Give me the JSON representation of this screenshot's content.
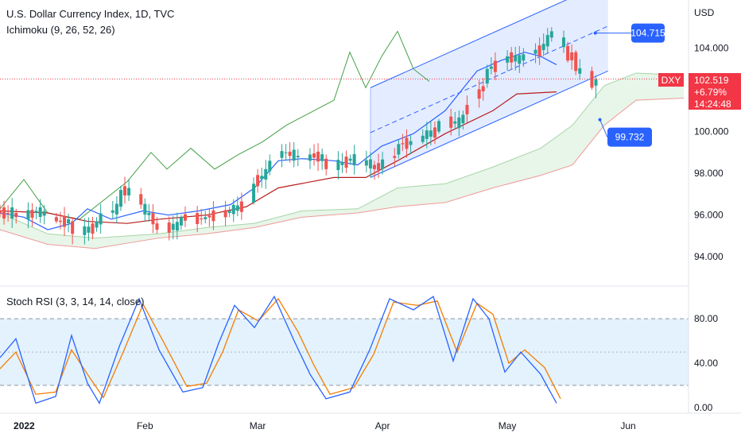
{
  "header": {
    "title": "U.S. Dollar Currency Index, 1D, TVC",
    "indicator": "Ichimoku (9, 26, 52, 26)",
    "stoch_label": "Stoch RSI (3, 3, 14, 14, close)",
    "currency": "USD"
  },
  "price_badge": {
    "symbol": "DXY",
    "price": "102.519",
    "change": "+6.79%",
    "countdown": "14:24:48"
  },
  "callouts": {
    "upper": "104.715",
    "lower": "99.732"
  },
  "colors": {
    "up": "#26a69a",
    "down": "#ef5350",
    "tenkan": "#2962ff",
    "kijun": "#b71c1c",
    "chikou": "#43a047",
    "span_a": "#a5d6a7",
    "span_b": "#ef9a9a",
    "cloud": "#e8f5e9",
    "channel": "#2962ff",
    "channel_fill": "#dbe5ff",
    "stoch_k": "#2962ff",
    "stoch_d": "#f57c00",
    "stoch_band": "#e3f2fd",
    "badge_blue": "#2962ff",
    "badge_red": "#f23645"
  },
  "chart_data": [
    {
      "type": "candlestick",
      "title": "U.S. Dollar Currency Index, 1D, TVC",
      "ylabel": "USD",
      "ylim": [
        92.6,
        106.3
      ],
      "y_ticks": [
        "94.000",
        "96.000",
        "98.000",
        "100.000",
        "104.000"
      ],
      "x_ticks": [
        "2022",
        "Feb",
        "Mar",
        "Apr",
        "May",
        "Jun"
      ],
      "x_range": [
        "2021-12-27",
        "2022-06-16"
      ],
      "candles_ohlc_approx": [
        [
          "2021-12-27",
          96.2,
          96.5,
          95.9,
          96.1
        ],
        [
          "2021-12-31",
          96.1,
          96.3,
          95.6,
          95.9
        ],
        [
          "2022-01-05",
          96.1,
          96.4,
          95.8,
          96.2
        ],
        [
          "2022-01-10",
          95.9,
          96.1,
          95.6,
          95.7
        ],
        [
          "2022-01-14",
          95.7,
          95.9,
          94.6,
          95.1
        ],
        [
          "2022-01-20",
          95.4,
          95.9,
          95.2,
          95.7
        ],
        [
          "2022-01-26",
          96.4,
          97.4,
          96.2,
          97.2
        ],
        [
          "2022-01-31",
          97.0,
          97.3,
          96.3,
          96.5
        ],
        [
          "2022-02-04",
          95.6,
          95.9,
          95.1,
          95.3
        ],
        [
          "2022-02-10",
          95.5,
          96.0,
          95.3,
          95.9
        ],
        [
          "2022-02-16",
          95.8,
          96.2,
          95.6,
          95.9
        ],
        [
          "2022-02-22",
          96.1,
          96.4,
          95.9,
          96.2
        ],
        [
          "2022-02-28",
          96.6,
          97.8,
          96.5,
          97.5
        ],
        [
          "2022-03-04",
          98.1,
          98.9,
          97.9,
          98.6
        ],
        [
          "2022-03-08",
          99.0,
          99.4,
          98.6,
          99.0
        ],
        [
          "2022-03-14",
          98.6,
          99.2,
          98.2,
          98.9
        ],
        [
          "2022-03-18",
          98.7,
          98.9,
          97.9,
          98.2
        ],
        [
          "2022-03-24",
          98.6,
          98.9,
          98.4,
          98.7
        ],
        [
          "2022-03-30",
          98.4,
          98.6,
          97.7,
          98.2
        ],
        [
          "2022-04-05",
          98.9,
          99.6,
          98.7,
          99.4
        ],
        [
          "2022-04-11",
          99.5,
          100.1,
          99.4,
          99.8
        ],
        [
          "2022-04-15",
          100.0,
          100.6,
          99.9,
          100.5
        ],
        [
          "2022-04-21",
          100.4,
          101.0,
          100.1,
          100.8
        ],
        [
          "2022-04-27",
          102.3,
          103.2,
          102.1,
          103.0
        ],
        [
          "2022-05-02",
          103.3,
          103.9,
          102.9,
          103.6
        ],
        [
          "2022-05-06",
          103.4,
          104.0,
          103.1,
          103.7
        ],
        [
          "2022-05-11",
          103.9,
          104.7,
          103.6,
          104.2
        ],
        [
          "2022-05-13",
          104.5,
          105.0,
          104.3,
          104.8
        ],
        [
          "2022-05-17",
          104.1,
          104.3,
          103.3,
          103.4
        ],
        [
          "2022-05-19",
          103.8,
          103.9,
          102.7,
          102.9
        ],
        [
          "2022-05-23",
          102.9,
          103.1,
          102.0,
          102.1
        ],
        [
          "2022-05-24",
          102.2,
          102.7,
          101.6,
          102.5
        ]
      ],
      "tenkan_sen": [
        [
          0,
          96.1
        ],
        [
          30,
          95.9
        ],
        [
          60,
          95.3
        ],
        [
          90,
          95.6
        ],
        [
          110,
          96.3
        ],
        [
          140,
          95.8
        ],
        [
          180,
          96.2
        ],
        [
          212,
          96.0
        ],
        [
          250,
          96.2
        ],
        [
          290,
          96.5
        ],
        [
          320,
          97.3
        ],
        [
          350,
          98.6
        ],
        [
          380,
          98.7
        ],
        [
          420,
          98.6
        ],
        [
          450,
          98.4
        ],
        [
          480,
          99.3
        ],
        [
          520,
          99.9
        ],
        [
          560,
          101.0
        ],
        [
          600,
          102.9
        ],
        [
          630,
          103.4
        ],
        [
          660,
          103.8
        ],
        [
          680,
          103.6
        ],
        [
          700,
          103.2
        ]
      ],
      "kijun_sen": [
        [
          0,
          96.2
        ],
        [
          60,
          96.1
        ],
        [
          110,
          95.7
        ],
        [
          160,
          95.6
        ],
        [
          200,
          95.8
        ],
        [
          260,
          96.0
        ],
        [
          310,
          96.4
        ],
        [
          350,
          97.3
        ],
        [
          420,
          97.8
        ],
        [
          460,
          97.8
        ],
        [
          500,
          98.6
        ],
        [
          560,
          99.9
        ],
        [
          620,
          101.0
        ],
        [
          650,
          101.8
        ],
        [
          700,
          101.9
        ]
      ],
      "chikou_span": [
        [
          0,
          96.3
        ],
        [
          30,
          97.7
        ],
        [
          60,
          96.1
        ],
        [
          100,
          95.8
        ],
        [
          160,
          97.6
        ],
        [
          190,
          99.0
        ],
        [
          210,
          98.2
        ],
        [
          240,
          99.2
        ],
        [
          270,
          98.2
        ],
        [
          300,
          98.9
        ],
        [
          330,
          99.5
        ],
        [
          360,
          100.3
        ],
        [
          390,
          100.9
        ],
        [
          420,
          101.5
        ],
        [
          440,
          103.8
        ],
        [
          460,
          102.1
        ],
        [
          480,
          103.6
        ],
        [
          500,
          104.8
        ],
        [
          520,
          103.0
        ],
        [
          540,
          102.4
        ]
      ],
      "senkou_span_a": [
        [
          0,
          96.1
        ],
        [
          60,
          95.1
        ],
        [
          120,
          94.9
        ],
        [
          200,
          95.1
        ],
        [
          260,
          95.4
        ],
        [
          320,
          95.6
        ],
        [
          380,
          96.2
        ],
        [
          450,
          96.3
        ],
        [
          500,
          97.3
        ],
        [
          560,
          97.5
        ],
        [
          620,
          98.3
        ],
        [
          680,
          99.2
        ],
        [
          720,
          100.3
        ],
        [
          760,
          102.2
        ],
        [
          800,
          102.8
        ],
        [
          860,
          102.7
        ]
      ],
      "senkou_span_b": [
        [
          0,
          95.3
        ],
        [
          60,
          94.6
        ],
        [
          120,
          94.4
        ],
        [
          200,
          94.9
        ],
        [
          260,
          95.1
        ],
        [
          320,
          95.4
        ],
        [
          380,
          95.9
        ],
        [
          450,
          96.1
        ],
        [
          500,
          96.4
        ],
        [
          560,
          96.6
        ],
        [
          620,
          97.3
        ],
        [
          680,
          97.9
        ],
        [
          720,
          98.4
        ],
        [
          760,
          100.3
        ],
        [
          800,
          101.5
        ],
        [
          860,
          101.6
        ]
      ],
      "channel": {
        "start": [
          "2022-03-29",
          97.8
        ],
        "end": [
          "2022-05-27",
          102.9
        ],
        "width": 4.3
      },
      "annotations": [
        {
          "label": "104.715",
          "value": 104.715
        },
        {
          "label": "99.732",
          "value": 99.732
        }
      ],
      "last_price": 102.519
    },
    {
      "type": "line",
      "title": "Stoch RSI (3, 3, 14, 14, close)",
      "ylim": [
        -5,
        108
      ],
      "y_ticks": [
        "0.00",
        "40.00",
        "80.00"
      ],
      "levels": [
        20,
        50,
        80
      ],
      "series": [
        {
          "name": "K",
          "values": [
            [
              0,
              45
            ],
            [
              20,
              62
            ],
            [
              45,
              4
            ],
            [
              70,
              10
            ],
            [
              90,
              65
            ],
            [
              110,
              22
            ],
            [
              125,
              4
            ],
            [
              150,
              55
            ],
            [
              175,
              98
            ],
            [
              200,
              52
            ],
            [
              230,
              14
            ],
            [
              255,
              18
            ],
            [
              275,
              58
            ],
            [
              295,
              92
            ],
            [
              320,
              72
            ],
            [
              345,
              100
            ],
            [
              370,
              60
            ],
            [
              390,
              30
            ],
            [
              410,
              8
            ],
            [
              440,
              14
            ],
            [
              465,
              52
            ],
            [
              490,
              98
            ],
            [
              520,
              88
            ],
            [
              545,
              100
            ],
            [
              570,
              42
            ],
            [
              595,
              98
            ],
            [
              615,
              80
            ],
            [
              635,
              32
            ],
            [
              655,
              50
            ],
            [
              680,
              30
            ],
            [
              700,
              4
            ]
          ]
        },
        {
          "name": "D",
          "values": [
            [
              0,
              35
            ],
            [
              20,
              50
            ],
            [
              45,
              12
            ],
            [
              70,
              14
            ],
            [
              90,
              52
            ],
            [
              110,
              30
            ],
            [
              130,
              9
            ],
            [
              155,
              50
            ],
            [
              180,
              93
            ],
            [
              205,
              60
            ],
            [
              235,
              19
            ],
            [
              260,
              22
            ],
            [
              280,
              50
            ],
            [
              300,
              88
            ],
            [
              325,
              78
            ],
            [
              350,
              98
            ],
            [
              375,
              68
            ],
            [
              395,
              38
            ],
            [
              415,
              12
            ],
            [
              445,
              18
            ],
            [
              470,
              48
            ],
            [
              495,
              95
            ],
            [
              525,
              92
            ],
            [
              550,
              96
            ],
            [
              575,
              50
            ],
            [
              600,
              94
            ],
            [
              620,
              84
            ],
            [
              640,
              40
            ],
            [
              660,
              52
            ],
            [
              685,
              36
            ],
            [
              705,
              8
            ]
          ]
        }
      ]
    }
  ]
}
